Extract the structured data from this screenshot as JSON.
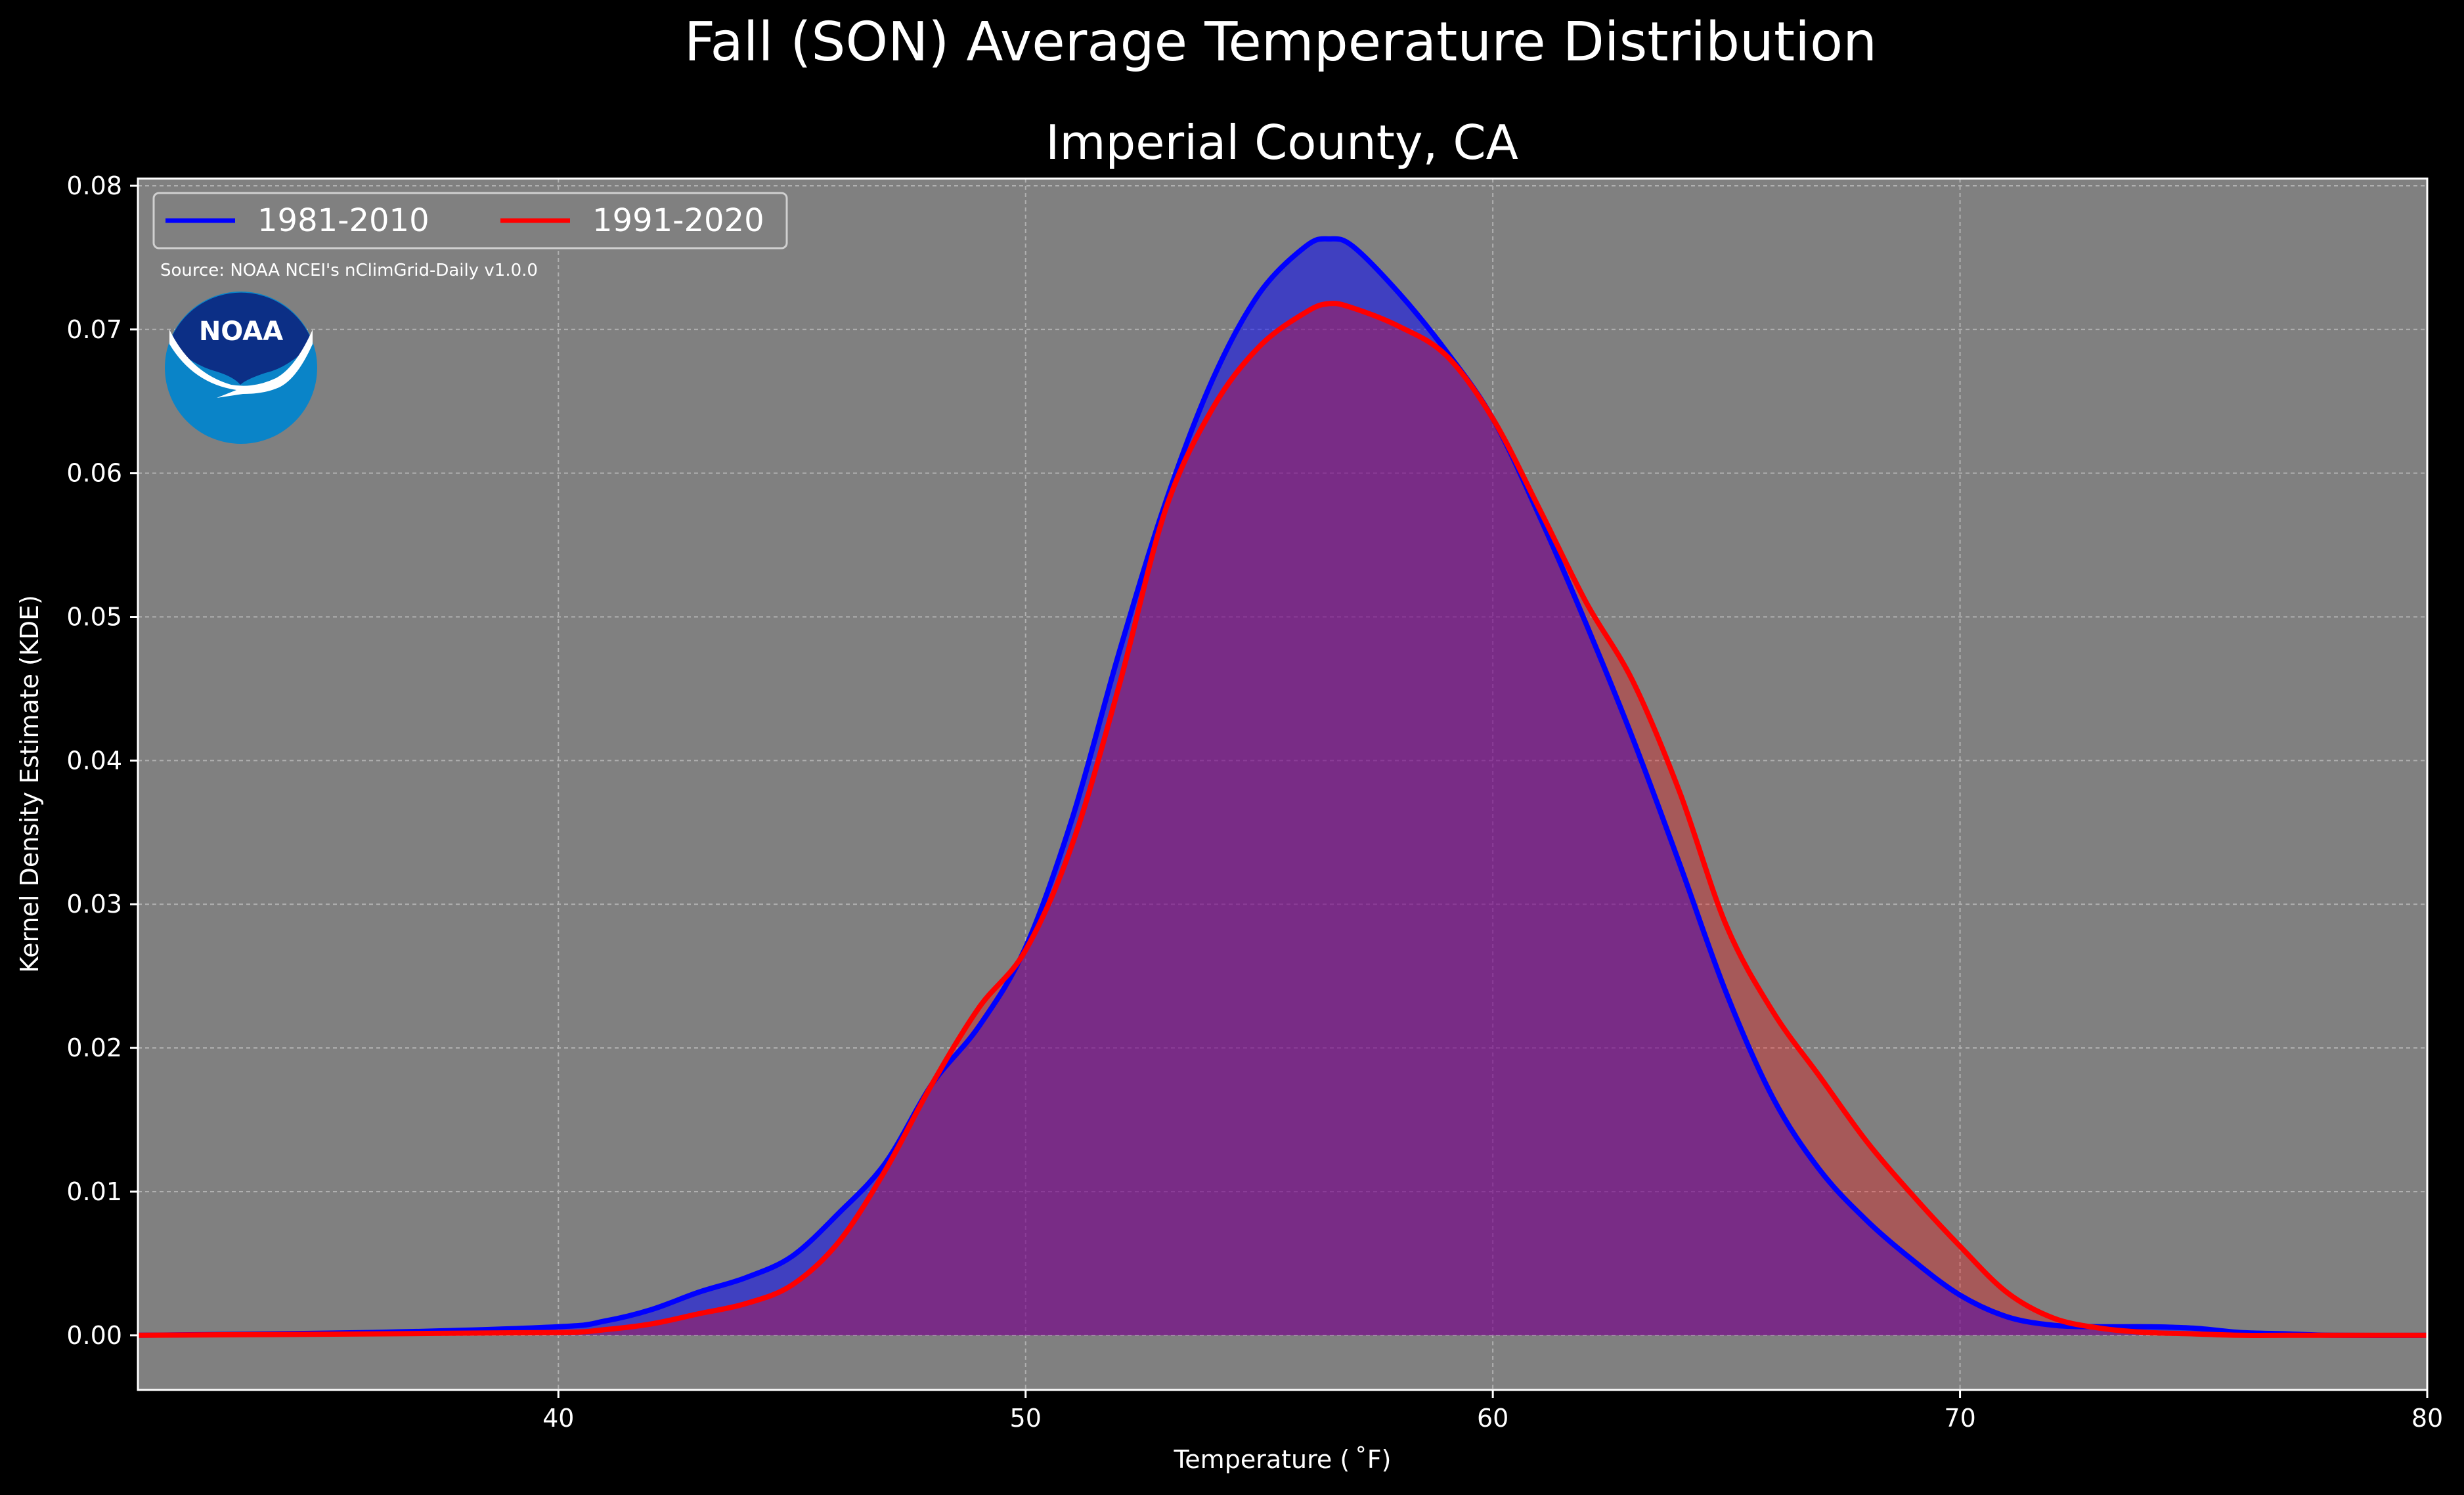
{
  "suptitle": "Fall (SON) Average Temperature Distribution",
  "title": "Imperial County, CA",
  "source": "Source: NOAA NCEI's nClimGrid-Daily v1.0.0",
  "logo_text": "NOAA",
  "chart_data": {
    "type": "area",
    "xlabel": "Temperature ($^\\circ$F)",
    "xlabel_display": "Temperature ( ˚F)",
    "ylabel": "Kernel Density Estimate (KDE)",
    "xlim": [
      31,
      80
    ],
    "ylim": [
      -0.0038,
      0.0805
    ],
    "xticks": [
      40,
      50,
      60,
      70,
      80
    ],
    "yticks": [
      0.0,
      0.01,
      0.02,
      0.03,
      0.04,
      0.05,
      0.06,
      0.07,
      0.08
    ],
    "ytick_labels": [
      "0.00",
      "0.01",
      "0.02",
      "0.03",
      "0.04",
      "0.05",
      "0.06",
      "0.07",
      "0.08"
    ],
    "grid": true,
    "legend_position": "top-left",
    "background": "#808080",
    "series": [
      {
        "name": "1981-2010",
        "color": "#0000ff",
        "fill": "#0000ff",
        "fill_opacity": 0.5,
        "x": [
          31,
          36,
          40,
          41,
          42,
          43,
          44,
          45,
          46,
          47,
          48,
          49,
          50,
          51,
          52,
          53,
          54,
          55,
          56,
          56.5,
          57,
          58,
          59,
          60,
          61,
          62,
          63,
          64,
          65,
          66,
          67,
          68,
          69,
          70,
          71,
          72,
          73,
          74,
          75,
          76,
          77,
          78,
          80
        ],
        "y": [
          0,
          0.0002,
          0.0006,
          0.001,
          0.0018,
          0.003,
          0.004,
          0.0055,
          0.0085,
          0.012,
          0.0175,
          0.0215,
          0.027,
          0.036,
          0.0475,
          0.058,
          0.0665,
          0.0725,
          0.0758,
          0.0763,
          0.0758,
          0.0725,
          0.0685,
          0.0638,
          0.057,
          0.0495,
          0.0415,
          0.0328,
          0.0238,
          0.0165,
          0.0115,
          0.008,
          0.0052,
          0.0028,
          0.0013,
          0.0007,
          0.0006,
          0.0006,
          0.0005,
          0.0002,
          0.0001,
          0.0,
          0
        ]
      },
      {
        "name": "1991-2020",
        "color": "#ff0000",
        "fill": "#ff0000",
        "fill_opacity": 0.3,
        "x": [
          31,
          36,
          40,
          41,
          42,
          43,
          44,
          45,
          46,
          47,
          48,
          49,
          50,
          51,
          52,
          53,
          54,
          55,
          56,
          56.5,
          57,
          58,
          59,
          60,
          61,
          62,
          63,
          64,
          65,
          66,
          67,
          68,
          69,
          70,
          71,
          72,
          73,
          74,
          75,
          76,
          77,
          78,
          80
        ],
        "y": [
          0,
          0.0001,
          0.0002,
          0.0004,
          0.0008,
          0.0015,
          0.0022,
          0.0035,
          0.0065,
          0.0115,
          0.0175,
          0.0228,
          0.0268,
          0.0342,
          0.0452,
          0.0575,
          0.0645,
          0.0688,
          0.0712,
          0.0718,
          0.0715,
          0.0702,
          0.0682,
          0.0638,
          0.0575,
          0.051,
          0.0455,
          0.0378,
          0.0285,
          0.0225,
          0.018,
          0.0135,
          0.0097,
          0.0062,
          0.003,
          0.0012,
          0.0005,
          0.0002,
          0.0001,
          0.0,
          0.0,
          0.0,
          0
        ]
      }
    ]
  }
}
